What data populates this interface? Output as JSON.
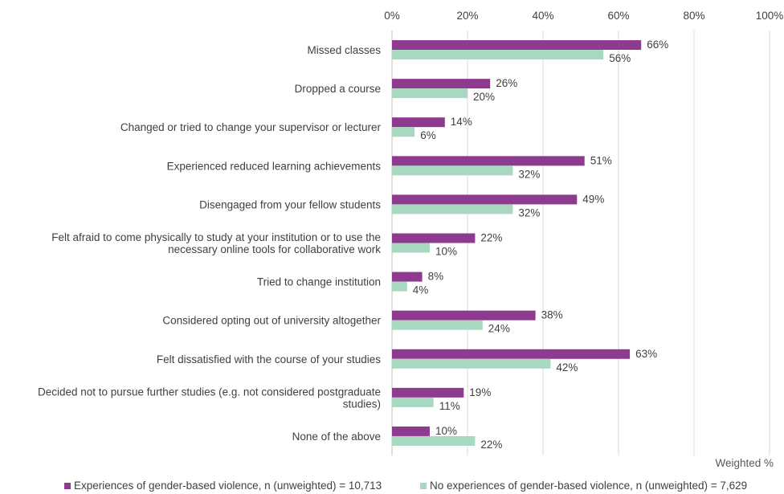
{
  "chart_data": {
    "type": "bar",
    "orientation": "horizontal",
    "title": "",
    "xlabel": "Weighted %",
    "ylabel": "",
    "xlim": [
      0,
      100
    ],
    "x_ticks": [
      "0%",
      "20%",
      "40%",
      "60%",
      "80%",
      "100%"
    ],
    "grid": true,
    "legend_position": "bottom",
    "categories": [
      "Missed classes",
      "Dropped a course",
      "Changed or tried to change your supervisor or lecturer",
      "Experienced reduced learning achievements",
      "Disengaged from your fellow students",
      "Felt afraid to come physically to study at your institution or to use the necessary online tools for collaborative work",
      "Tried to change institution",
      "Considered opting out of university altogether",
      "Felt dissatisfied with the course of your studies",
      "Decided not to pursue further studies (e.g. not considered postgraduate studies)",
      "None of the above"
    ],
    "category_lines": [
      [
        "Missed classes"
      ],
      [
        "Dropped a course"
      ],
      [
        "Changed or tried to change your supervisor or lecturer"
      ],
      [
        "Experienced reduced learning achievements"
      ],
      [
        "Disengaged from your fellow students"
      ],
      [
        "Felt afraid to come physically to study at your institution or to use the",
        "necessary online tools for collaborative work"
      ],
      [
        "Tried to change institution"
      ],
      [
        "Considered opting out of university altogether"
      ],
      [
        "Felt dissatisfied with the course of your studies"
      ],
      [
        "Decided not to pursue further studies (e.g. not considered postgraduate",
        "studies)"
      ],
      [
        "None of the above"
      ]
    ],
    "series": [
      {
        "name": "Experiences of gender-based violence, n (unweighted) = 10,713",
        "color": "#8e3a8e",
        "values": [
          66,
          26,
          14,
          51,
          49,
          22,
          8,
          38,
          63,
          19,
          10
        ],
        "labels": [
          "66%",
          "26%",
          "14%",
          "51%",
          "49%",
          "22%",
          "8%",
          "38%",
          "63%",
          "19%",
          "10%"
        ]
      },
      {
        "name": "No experiences of gender-based violence, n (unweighted) = 7,629",
        "color": "#a8d8bf",
        "values": [
          56,
          20,
          6,
          32,
          32,
          10,
          4,
          24,
          42,
          11,
          22
        ],
        "labels": [
          "56%",
          "20%",
          "6%",
          "32%",
          "32%",
          "10%",
          "4%",
          "24%",
          "42%",
          "11%",
          "22%"
        ]
      }
    ]
  }
}
